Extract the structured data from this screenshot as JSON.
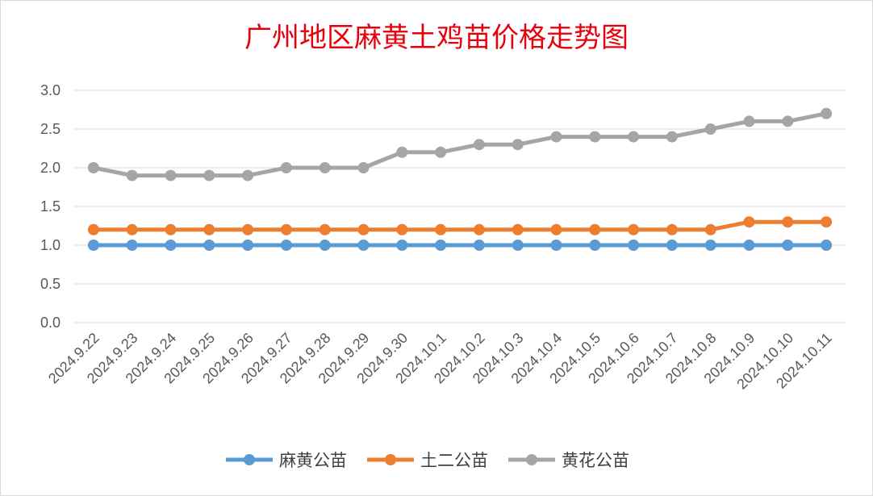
{
  "chart_data": {
    "type": "line",
    "title": "广州地区麻黄土鸡苗价格走势图",
    "categories": [
      "2024.9.22",
      "2024.9.23",
      "2024.9.24",
      "2024.9.25",
      "2024.9.26",
      "2024.9.27",
      "2024.9.28",
      "2024.9.29",
      "2024.9.30",
      "2024.10.1",
      "2024.10.2",
      "2024.10.3",
      "2024.10.4",
      "2024.10.5",
      "2024.10.6",
      "2024.10.7",
      "2024.10.8",
      "2024.10.9",
      "2024.10.10",
      "2024.10.11"
    ],
    "y_ticks": [
      "0.0",
      "0.5",
      "1.0",
      "1.5",
      "2.0",
      "2.5",
      "3.0"
    ],
    "ylim": [
      0,
      3.0
    ],
    "grid": true,
    "legend_position": "bottom",
    "series": [
      {
        "name": "麻黄公苗",
        "color": "#5b9bd5",
        "values": [
          1.0,
          1.0,
          1.0,
          1.0,
          1.0,
          1.0,
          1.0,
          1.0,
          1.0,
          1.0,
          1.0,
          1.0,
          1.0,
          1.0,
          1.0,
          1.0,
          1.0,
          1.0,
          1.0,
          1.0
        ]
      },
      {
        "name": "土二公苗",
        "color": "#ed7d31",
        "values": [
          1.2,
          1.2,
          1.2,
          1.2,
          1.2,
          1.2,
          1.2,
          1.2,
          1.2,
          1.2,
          1.2,
          1.2,
          1.2,
          1.2,
          1.2,
          1.2,
          1.2,
          1.3,
          1.3,
          1.3
        ]
      },
      {
        "name": "黄花公苗",
        "color": "#a5a5a5",
        "values": [
          2.0,
          1.9,
          1.9,
          1.9,
          1.9,
          2.0,
          2.0,
          2.0,
          2.2,
          2.2,
          2.3,
          2.3,
          2.4,
          2.4,
          2.4,
          2.4,
          2.5,
          2.6,
          2.6,
          2.7
        ]
      }
    ]
  }
}
